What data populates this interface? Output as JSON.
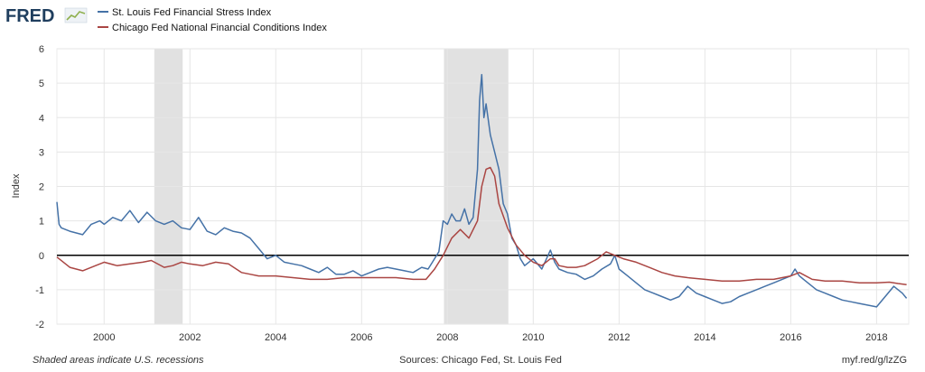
{
  "logo": "FRED",
  "colors": {
    "series1": "#4572a7",
    "series2": "#aa4643",
    "recession": "#e1e1e1",
    "grid": "#e6e6e6",
    "zero_line": "#000000",
    "plot_bg": "#ffffff",
    "frame": "#ebebeb"
  },
  "footer": {
    "left": "Shaded areas indicate U.S. recessions",
    "center": "Sources: Chicago Fed, St. Louis Fed",
    "right": "myf.red/g/lzZG"
  },
  "chart_data": {
    "type": "line",
    "title": "",
    "xlabel": "",
    "ylabel": "Index",
    "xlim": [
      1998.9,
      2018.75
    ],
    "ylim": [
      -2,
      6
    ],
    "yticks": [
      -2,
      -1,
      0,
      1,
      2,
      3,
      4,
      5,
      6
    ],
    "xticks": [
      2000,
      2002,
      2004,
      2006,
      2008,
      2010,
      2012,
      2014,
      2016,
      2018
    ],
    "grid": true,
    "legend_position": "top-left",
    "recessions": [
      [
        2001.17,
        2001.83
      ],
      [
        2007.92,
        2009.42
      ]
    ],
    "series": [
      {
        "name": "St. Louis Fed Financial Stress Index",
        "x": [
          1998.9,
          1998.95,
          1999.0,
          1999.2,
          1999.5,
          1999.7,
          1999.9,
          2000.0,
          2000.2,
          2000.4,
          2000.6,
          2000.8,
          2001.0,
          2001.2,
          2001.4,
          2001.6,
          2001.8,
          2002.0,
          2002.2,
          2002.4,
          2002.6,
          2002.8,
          2003.0,
          2003.2,
          2003.4,
          2003.6,
          2003.8,
          2004.0,
          2004.2,
          2004.4,
          2004.6,
          2004.8,
          2005.0,
          2005.2,
          2005.4,
          2005.6,
          2005.8,
          2006.0,
          2006.2,
          2006.4,
          2006.6,
          2006.8,
          2007.0,
          2007.2,
          2007.4,
          2007.55,
          2007.65,
          2007.8,
          2007.9,
          2008.0,
          2008.1,
          2008.2,
          2008.3,
          2008.4,
          2008.5,
          2008.6,
          2008.7,
          2008.75,
          2008.8,
          2008.85,
          2008.9,
          2009.0,
          2009.1,
          2009.2,
          2009.3,
          2009.4,
          2009.5,
          2009.6,
          2009.7,
          2009.8,
          2010.0,
          2010.2,
          2010.4,
          2010.5,
          2010.6,
          2010.8,
          2011.0,
          2011.2,
          2011.4,
          2011.6,
          2011.8,
          2011.9,
          2012.0,
          2012.2,
          2012.4,
          2012.6,
          2012.8,
          2013.0,
          2013.2,
          2013.4,
          2013.6,
          2013.8,
          2014.0,
          2014.2,
          2014.4,
          2014.6,
          2014.8,
          2015.0,
          2015.2,
          2015.4,
          2015.6,
          2015.8,
          2016.0,
          2016.1,
          2016.2,
          2016.4,
          2016.6,
          2016.8,
          2017.0,
          2017.2,
          2017.4,
          2017.6,
          2017.8,
          2018.0,
          2018.2,
          2018.4,
          2018.6,
          2018.7
        ],
        "y": [
          1.55,
          0.9,
          0.8,
          0.7,
          0.6,
          0.9,
          1.0,
          0.9,
          1.1,
          1.0,
          1.3,
          0.95,
          1.25,
          1.0,
          0.9,
          1.0,
          0.8,
          0.75,
          1.1,
          0.7,
          0.6,
          0.8,
          0.7,
          0.65,
          0.5,
          0.2,
          -0.1,
          0.0,
          -0.2,
          -0.25,
          -0.3,
          -0.4,
          -0.5,
          -0.35,
          -0.55,
          -0.55,
          -0.45,
          -0.6,
          -0.5,
          -0.4,
          -0.35,
          -0.4,
          -0.45,
          -0.5,
          -0.35,
          -0.4,
          -0.2,
          0.1,
          1.0,
          0.9,
          1.2,
          1.0,
          1.0,
          1.35,
          0.9,
          1.1,
          2.5,
          4.5,
          5.25,
          4.0,
          4.4,
          3.5,
          3.0,
          2.5,
          1.5,
          1.2,
          0.5,
          0.3,
          -0.1,
          -0.3,
          -0.1,
          -0.4,
          0.15,
          -0.2,
          -0.4,
          -0.5,
          -0.55,
          -0.7,
          -0.6,
          -0.4,
          -0.25,
          0.0,
          -0.4,
          -0.6,
          -0.8,
          -1.0,
          -1.1,
          -1.2,
          -1.3,
          -1.2,
          -0.9,
          -1.1,
          -1.2,
          -1.3,
          -1.4,
          -1.35,
          -1.2,
          -1.1,
          -1.0,
          -0.9,
          -0.8,
          -0.7,
          -0.6,
          -0.4,
          -0.6,
          -0.8,
          -1.0,
          -1.1,
          -1.2,
          -1.3,
          -1.35,
          -1.4,
          -1.45,
          -1.5,
          -1.2,
          -0.9,
          -1.1,
          -1.25
        ]
      },
      {
        "name": "Chicago Fed National Financial Conditions Index",
        "x": [
          1998.9,
          1999.2,
          1999.5,
          1999.8,
          2000.0,
          2000.3,
          2000.6,
          2000.9,
          2001.1,
          2001.4,
          2001.6,
          2001.8,
          2002.0,
          2002.3,
          2002.6,
          2002.9,
          2003.2,
          2003.4,
          2003.6,
          2004.0,
          2004.4,
          2004.8,
          2005.2,
          2005.6,
          2006.0,
          2006.4,
          2006.8,
          2007.2,
          2007.5,
          2007.7,
          2007.9,
          2008.1,
          2008.3,
          2008.5,
          2008.7,
          2008.8,
          2008.9,
          2009.0,
          2009.1,
          2009.2,
          2009.4,
          2009.6,
          2009.8,
          2010.0,
          2010.2,
          2010.4,
          2010.5,
          2010.6,
          2010.8,
          2011.0,
          2011.2,
          2011.5,
          2011.7,
          2011.9,
          2012.1,
          2012.4,
          2012.7,
          2013.0,
          2013.3,
          2013.6,
          2014.0,
          2014.4,
          2014.8,
          2015.2,
          2015.6,
          2016.0,
          2016.2,
          2016.5,
          2016.8,
          2017.2,
          2017.6,
          2018.0,
          2018.3,
          2018.5,
          2018.7
        ],
        "y": [
          -0.05,
          -0.35,
          -0.45,
          -0.3,
          -0.2,
          -0.3,
          -0.25,
          -0.2,
          -0.15,
          -0.35,
          -0.3,
          -0.2,
          -0.25,
          -0.3,
          -0.2,
          -0.25,
          -0.5,
          -0.55,
          -0.6,
          -0.6,
          -0.65,
          -0.7,
          -0.7,
          -0.65,
          -0.65,
          -0.65,
          -0.65,
          -0.7,
          -0.7,
          -0.4,
          0.0,
          0.5,
          0.75,
          0.5,
          1.0,
          2.0,
          2.5,
          2.55,
          2.3,
          1.5,
          0.8,
          0.3,
          0.0,
          -0.2,
          -0.3,
          -0.1,
          -0.1,
          -0.3,
          -0.35,
          -0.35,
          -0.3,
          -0.1,
          0.1,
          0.0,
          -0.1,
          -0.2,
          -0.35,
          -0.5,
          -0.6,
          -0.65,
          -0.7,
          -0.75,
          -0.75,
          -0.7,
          -0.7,
          -0.6,
          -0.5,
          -0.7,
          -0.75,
          -0.75,
          -0.8,
          -0.8,
          -0.78,
          -0.82,
          -0.85
        ]
      }
    ]
  }
}
